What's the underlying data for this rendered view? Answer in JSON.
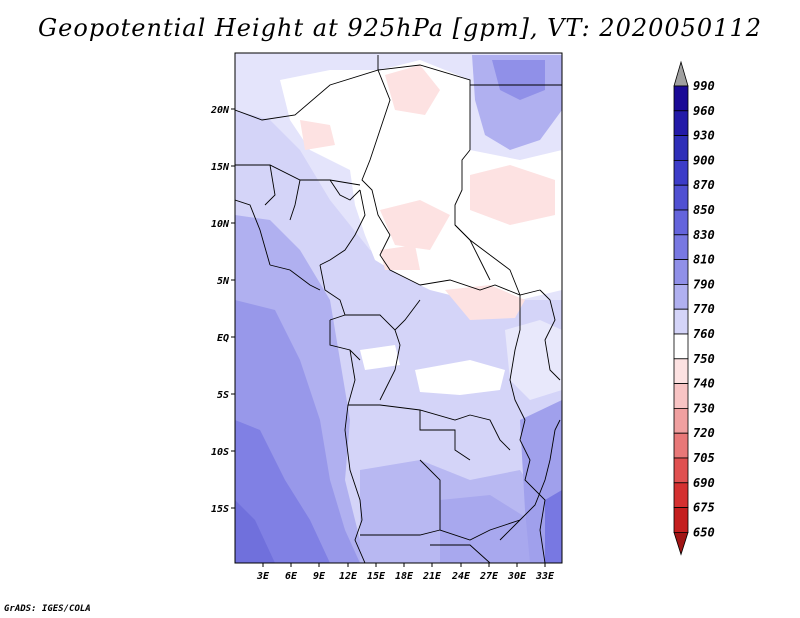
{
  "title": "Geopotential Height at 925hPa [gpm], VT: 2020050112",
  "credit": "GrADS: IGES/COLA",
  "map": {
    "lat_labels": [
      "20N",
      "15N",
      "10N",
      "5N",
      "EQ",
      "5S",
      "10S",
      "15S"
    ],
    "lon_labels": [
      "3E",
      "6E",
      "9E",
      "12E",
      "15E",
      "18E",
      "21E",
      "24E",
      "27E",
      "30E",
      "33E"
    ]
  },
  "colorbar": {
    "levels": [
      "990",
      "960",
      "930",
      "900",
      "870",
      "850",
      "830",
      "810",
      "790",
      "770",
      "760",
      "750",
      "740",
      "730",
      "720",
      "705",
      "690",
      "675",
      "650"
    ],
    "colors": [
      "#1a0a96",
      "#231aa8",
      "#2e2eb8",
      "#3c3cc8",
      "#5050d2",
      "#6464dc",
      "#7878e2",
      "#9090e8",
      "#b0b0f0",
      "#d4d4f8",
      "#ffffff",
      "#fde2e2",
      "#f8c4c4",
      "#f0a0a0",
      "#e87878",
      "#e05050",
      "#d43030",
      "#c41e1e",
      "#a01414"
    ],
    "top_arrow_color": "#a0a0a0",
    "bottom_arrow_color": "#a01414"
  }
}
